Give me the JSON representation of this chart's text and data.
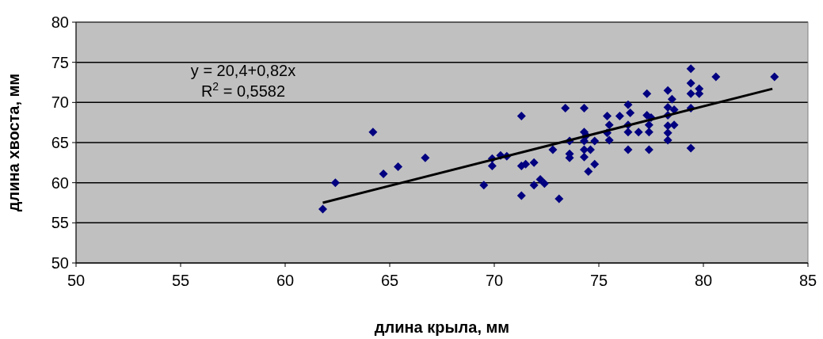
{
  "chart_data": {
    "type": "scatter",
    "xlabel": "длина крыла, мм",
    "ylabel": "длина хвоста, мм",
    "xlim": [
      50,
      85
    ],
    "ylim": [
      50,
      80
    ],
    "xticks": [
      50,
      55,
      60,
      65,
      70,
      75,
      80,
      85
    ],
    "yticks": [
      50,
      55,
      60,
      65,
      70,
      75,
      80
    ],
    "grid": "y",
    "annotations": [
      "y = 20,4+0,82x",
      "R$^{2}$ = 0,5582"
    ],
    "series": [
      {
        "color": "#000080",
        "marker": "diamond",
        "x": [
          61.8,
          62.4,
          64.2,
          64.7,
          65.4,
          66.7,
          69.5,
          69.9,
          69.9,
          70.3,
          70.6,
          71.3,
          71.3,
          71.3,
          71.5,
          71.9,
          71.9,
          72.2,
          72.4,
          72.8,
          73.1,
          73.4,
          73.6,
          73.6,
          73.6,
          74.3,
          74.3,
          74.3,
          74.4,
          74.3,
          74.3,
          74.5,
          74.8,
          74.6,
          74.8,
          75.4,
          75.5,
          75.4,
          75.5,
          76.0,
          76.4,
          76.5,
          76.4,
          76.4,
          76.4,
          76.9,
          77.3,
          77.3,
          77.5,
          77.4,
          77.4,
          77.4,
          78.3,
          78.5,
          78.3,
          78.6,
          78.3,
          78.6,
          78.3,
          78.3,
          78.3,
          79.4,
          79.4,
          79.4,
          79.8,
          79.8,
          79.4,
          79.4,
          80.6,
          83.4
        ],
        "values": [
          56.7,
          60.0,
          66.3,
          61.1,
          62.0,
          63.1,
          59.7,
          62.1,
          63.0,
          63.4,
          63.3,
          68.3,
          62.1,
          58.4,
          62.3,
          62.5,
          59.7,
          60.4,
          59.9,
          64.1,
          58.0,
          69.3,
          65.2,
          63.6,
          63.1,
          69.3,
          66.3,
          65.2,
          65.9,
          64.1,
          63.2,
          61.4,
          62.3,
          64.1,
          65.2,
          68.3,
          67.2,
          66.2,
          65.3,
          68.3,
          69.7,
          68.7,
          67.2,
          66.3,
          64.1,
          66.3,
          71.1,
          68.4,
          68.1,
          67.2,
          66.3,
          64.1,
          71.5,
          70.4,
          69.4,
          69.1,
          68.4,
          67.2,
          67.1,
          66.2,
          65.3,
          74.2,
          72.4,
          71.1,
          71.7,
          71.1,
          69.3,
          64.3,
          73.2,
          73.2
        ]
      },
      {
        "type": "line",
        "marker": "none",
        "color": "#000000",
        "x": [
          61.8,
          83.3
        ],
        "values": [
          57.5,
          71.7
        ]
      }
    ]
  }
}
